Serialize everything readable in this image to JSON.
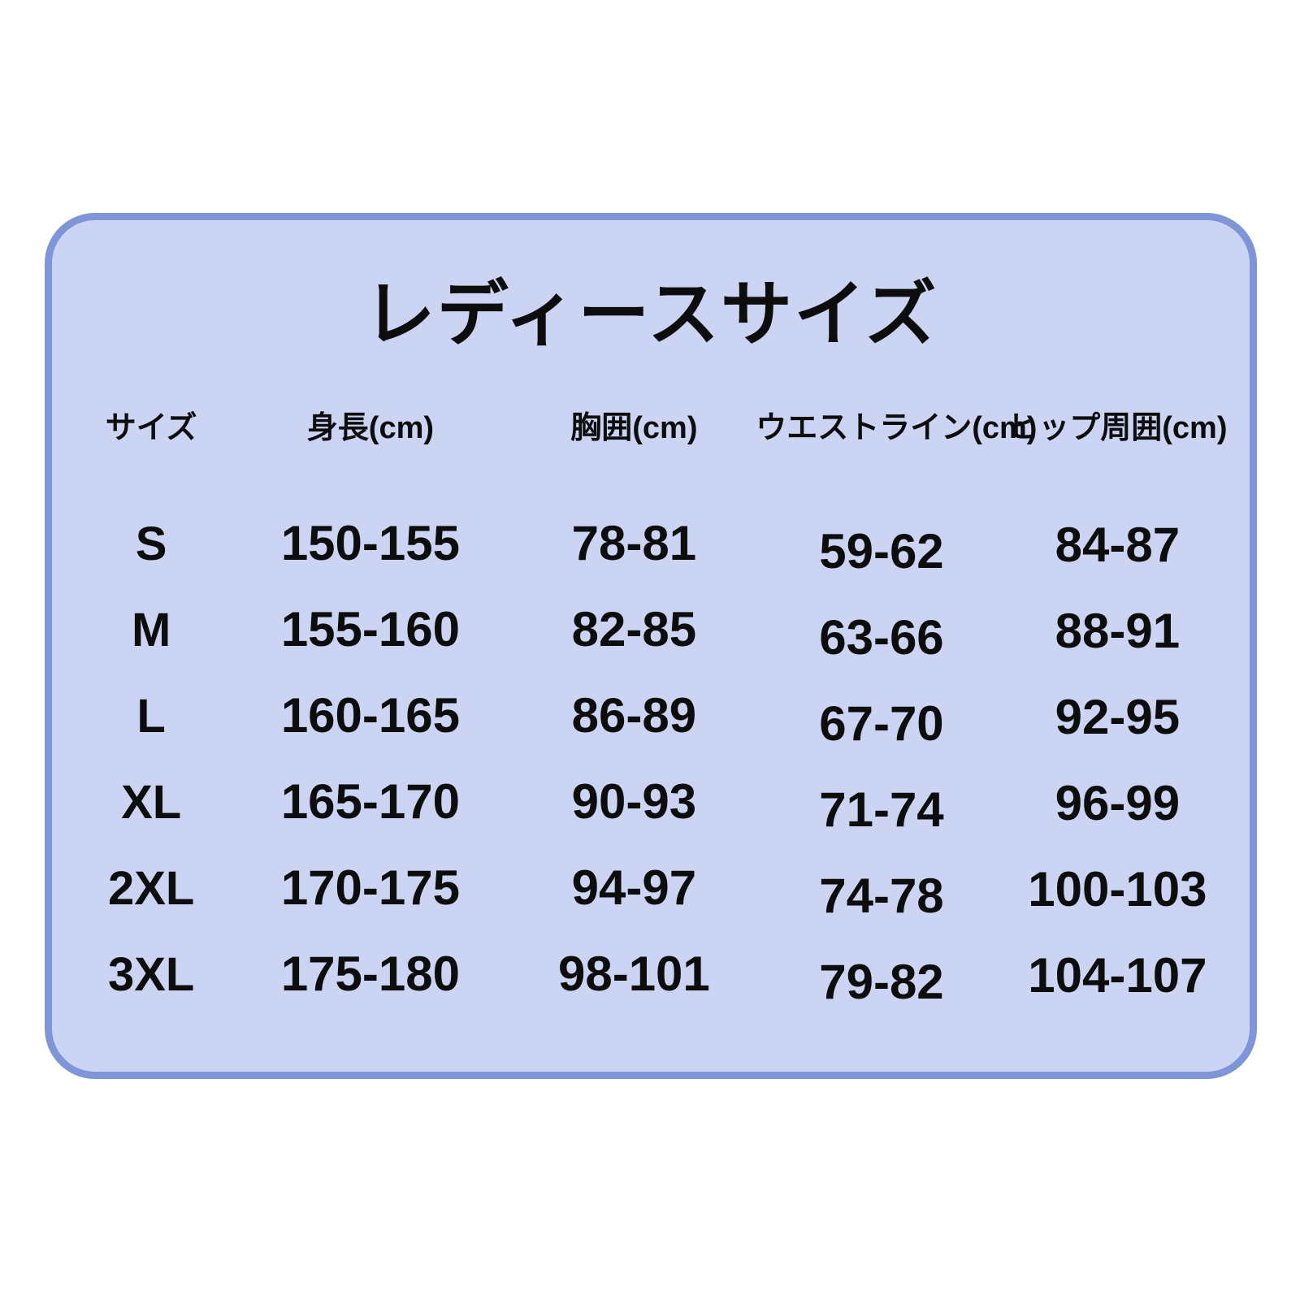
{
  "page": {
    "background_color": "#ffffff"
  },
  "card": {
    "title": "レディースサイズ",
    "background_color": "#ccd4f3",
    "border_color": "#7e96d8",
    "text_color": "#0d0d0d"
  },
  "table": {
    "columns": [
      "サイズ",
      "身長(cm)",
      "胸囲(cm)",
      "ウエストライン(cm)",
      "ヒップ周囲(cm)"
    ],
    "rows": [
      {
        "size": "S",
        "height": "150-155",
        "chest": "78-81",
        "waist": "59-62",
        "hip": "84-87"
      },
      {
        "size": "M",
        "height": "155-160",
        "chest": "82-85",
        "waist": "63-66",
        "hip": "88-91"
      },
      {
        "size": "L",
        "height": "160-165",
        "chest": "86-89",
        "waist": "67-70",
        "hip": "92-95"
      },
      {
        "size": "XL",
        "height": "165-170",
        "chest": "90-93",
        "waist": "71-74",
        "hip": "96-99"
      },
      {
        "size": "2XL",
        "height": "170-175",
        "chest": "94-97",
        "waist": "74-78",
        "hip": "100-103"
      },
      {
        "size": "3XL",
        "height": "175-180",
        "chest": "98-101",
        "waist": "79-82",
        "hip": "104-107"
      }
    ]
  },
  "chart_data": {
    "type": "table",
    "title": "レディースサイズ",
    "columns": [
      "サイズ",
      "身長(cm)",
      "胸囲(cm)",
      "ウエストライン(cm)",
      "ヒップ周囲(cm)"
    ],
    "rows": [
      [
        "S",
        "150-155",
        "78-81",
        "59-62",
        "84-87"
      ],
      [
        "M",
        "155-160",
        "82-85",
        "63-66",
        "88-91"
      ],
      [
        "L",
        "160-165",
        "86-89",
        "67-70",
        "92-95"
      ],
      [
        "XL",
        "165-170",
        "90-93",
        "71-74",
        "96-99"
      ],
      [
        "2XL",
        "170-175",
        "94-97",
        "74-78",
        "100-103"
      ],
      [
        "3XL",
        "175-180",
        "98-101",
        "79-82",
        "104-107"
      ]
    ]
  }
}
